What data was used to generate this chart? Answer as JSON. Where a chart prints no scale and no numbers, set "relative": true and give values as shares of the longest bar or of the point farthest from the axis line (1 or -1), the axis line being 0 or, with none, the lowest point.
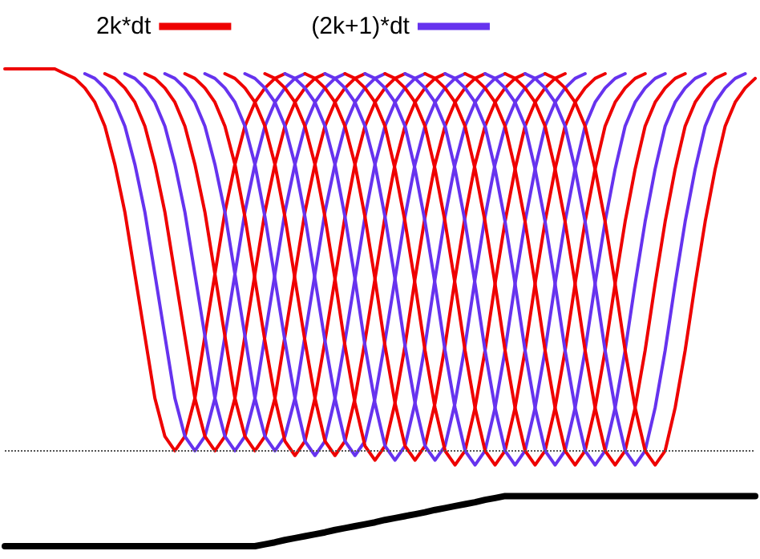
{
  "chart_data": {
    "type": "line",
    "relative": true,
    "marker": "none",
    "legend": "top left",
    "grid": false,
    "categories": [
      null,
      null,
      null,
      null,
      null,
      null,
      null,
      null,
      null,
      null,
      null,
      null,
      null,
      null,
      null,
      null,
      null,
      null,
      null,
      null,
      null,
      null,
      null,
      null,
      null,
      null,
      null,
      null,
      null,
      null,
      null,
      null,
      null,
      null,
      null,
      null,
      null,
      null,
      null,
      null,
      null,
      null,
      null,
      null,
      null,
      null,
      null,
      null,
      null,
      null,
      null,
      null,
      null,
      null,
      null,
      null,
      null,
      null,
      null,
      null,
      null,
      null,
      null,
      null,
      null,
      null,
      null,
      null,
      null,
      null,
      null,
      null,
      null,
      null,
      null,
      null
    ],
    "ref_lines": [
      {
        "axis": "y",
        "value": 0.2,
        "line_style": "dotted",
        "color": "#555555"
      }
    ],
    "series": [
      {
        "name": "2k*dt",
        "color": "#ee0000",
        "values": [
          1,
          1,
          1,
          1,
          1,
          1,
          0.99,
          0.98,
          0.96,
          0.93,
          0.88,
          0.8,
          0.7,
          0.57,
          0.44,
          0.31,
          0.23,
          0.2,
          0.23,
          0.31,
          0.44,
          0.57,
          0.7,
          0.8,
          0.88,
          0.93,
          0.96,
          0.98,
          0.99,
          null,
          null,
          null,
          null,
          null,
          null,
          null,
          null,
          null,
          null,
          null,
          null,
          null,
          null,
          null,
          null,
          null,
          null,
          null,
          null,
          null,
          null,
          null,
          null,
          null,
          null,
          null,
          null,
          null,
          null,
          null,
          null,
          null,
          null,
          null,
          null,
          null,
          null,
          null,
          null,
          null,
          null,
          null,
          null,
          null,
          null,
          null
        ]
      },
      {
        "name": "(2k+1)*dt",
        "color": "#6633ee",
        "values": [
          null,
          null,
          null,
          null,
          null,
          null,
          null,
          null,
          0.99,
          0.98,
          0.96,
          0.93,
          0.88,
          0.8,
          0.7,
          0.57,
          0.44,
          0.31,
          0.23,
          0.2,
          0.23,
          0.31,
          0.44,
          0.57,
          0.7,
          0.8,
          0.88,
          0.93,
          0.96,
          0.98,
          0.99,
          null,
          null,
          null,
          null,
          null,
          null,
          null,
          null,
          null,
          null,
          null,
          null,
          null,
          null,
          null,
          null,
          null,
          null,
          null,
          null,
          null,
          null,
          null,
          null,
          null,
          null,
          null,
          null,
          null,
          null,
          null,
          null,
          null,
          null,
          null,
          null,
          null,
          null,
          null,
          null,
          null,
          null,
          null,
          null,
          null
        ]
      },
      {
        "color": "#ee0000",
        "values": [
          null,
          null,
          null,
          null,
          null,
          null,
          null,
          null,
          null,
          null,
          0.99,
          0.98,
          0.96,
          0.93,
          0.88,
          0.8,
          0.7,
          0.57,
          0.44,
          0.31,
          0.23,
          0.2,
          0.23,
          0.31,
          0.44,
          0.57,
          0.7,
          0.8,
          0.88,
          0.93,
          0.96,
          0.98,
          0.99,
          null,
          null,
          null,
          null,
          null,
          null,
          null,
          null,
          null,
          null,
          null,
          null,
          null,
          null,
          null,
          null,
          null,
          null,
          null,
          null,
          null,
          null,
          null,
          null,
          null,
          null,
          null,
          null,
          null,
          null,
          null,
          null,
          null,
          null,
          null,
          null,
          null,
          null,
          null,
          null,
          null,
          null,
          null
        ]
      },
      {
        "color": "#6633ee",
        "values": [
          null,
          null,
          null,
          null,
          null,
          null,
          null,
          null,
          null,
          null,
          null,
          null,
          0.99,
          0.98,
          0.96,
          0.93,
          0.88,
          0.8,
          0.7,
          0.57,
          0.44,
          0.31,
          0.23,
          0.2,
          0.23,
          0.31,
          0.44,
          0.57,
          0.7,
          0.8,
          0.88,
          0.93,
          0.96,
          0.98,
          0.99,
          null,
          null,
          null,
          null,
          null,
          null,
          null,
          null,
          null,
          null,
          null,
          null,
          null,
          null,
          null,
          null,
          null,
          null,
          null,
          null,
          null,
          null,
          null,
          null,
          null,
          null,
          null,
          null,
          null,
          null,
          null,
          null,
          null,
          null,
          null,
          null,
          null,
          null,
          null,
          null,
          null
        ]
      },
      {
        "color": "#ee0000",
        "values": [
          null,
          null,
          null,
          null,
          null,
          null,
          null,
          null,
          null,
          null,
          null,
          null,
          null,
          null,
          0.99,
          0.98,
          0.96,
          0.93,
          0.88,
          0.8,
          0.7,
          0.57,
          0.44,
          0.31,
          0.23,
          0.2,
          0.23,
          0.31,
          0.44,
          0.57,
          0.7,
          0.8,
          0.88,
          0.93,
          0.96,
          0.98,
          0.99,
          null,
          null,
          null,
          null,
          null,
          null,
          null,
          null,
          null,
          null,
          null,
          null,
          null,
          null,
          null,
          null,
          null,
          null,
          null,
          null,
          null,
          null,
          null,
          null,
          null,
          null,
          null,
          null,
          null,
          null,
          null,
          null,
          null,
          null,
          null,
          null,
          null,
          null,
          null
        ]
      },
      {
        "color": "#6633ee",
        "values": [
          null,
          null,
          null,
          null,
          null,
          null,
          null,
          null,
          null,
          null,
          null,
          null,
          null,
          null,
          null,
          null,
          0.99,
          0.98,
          0.96,
          0.93,
          0.88,
          0.8,
          0.7,
          0.57,
          0.44,
          0.31,
          0.23,
          0.2,
          0.23,
          0.31,
          0.44,
          0.57,
          0.7,
          0.8,
          0.88,
          0.93,
          0.96,
          0.98,
          0.99,
          null,
          null,
          null,
          null,
          null,
          null,
          null,
          null,
          null,
          null,
          null,
          null,
          null,
          null,
          null,
          null,
          null,
          null,
          null,
          null,
          null,
          null,
          null,
          null,
          null,
          null,
          null,
          null,
          null,
          null,
          null,
          null,
          null,
          null,
          null,
          null,
          null
        ]
      },
      {
        "color": "#ee0000",
        "values": [
          null,
          null,
          null,
          null,
          null,
          null,
          null,
          null,
          null,
          null,
          null,
          null,
          null,
          null,
          null,
          null,
          null,
          null,
          0.99,
          0.98,
          0.96,
          0.93,
          0.88,
          0.8,
          0.69,
          0.56,
          0.43,
          0.31,
          0.22,
          0.19,
          0.22,
          0.31,
          0.43,
          0.56,
          0.69,
          0.8,
          0.88,
          0.93,
          0.96,
          0.98,
          0.99,
          null,
          null,
          null,
          null,
          null,
          null,
          null,
          null,
          null,
          null,
          null,
          null,
          null,
          null,
          null,
          null,
          null,
          null,
          null,
          null,
          null,
          null,
          null,
          null,
          null,
          null,
          null,
          null,
          null,
          null,
          null,
          null,
          null,
          null,
          null
        ]
      },
      {
        "color": "#6633ee",
        "values": [
          null,
          null,
          null,
          null,
          null,
          null,
          null,
          null,
          null,
          null,
          null,
          null,
          null,
          null,
          null,
          null,
          null,
          null,
          null,
          null,
          0.99,
          0.98,
          0.96,
          0.93,
          0.88,
          0.8,
          0.69,
          0.56,
          0.43,
          0.31,
          0.22,
          0.19,
          0.22,
          0.31,
          0.43,
          0.56,
          0.69,
          0.8,
          0.88,
          0.93,
          0.96,
          0.98,
          0.99,
          null,
          null,
          null,
          null,
          null,
          null,
          null,
          null,
          null,
          null,
          null,
          null,
          null,
          null,
          null,
          null,
          null,
          null,
          null,
          null,
          null,
          null,
          null,
          null,
          null,
          null,
          null,
          null,
          null,
          null,
          null,
          null,
          null
        ]
      },
      {
        "color": "#ee0000",
        "values": [
          null,
          null,
          null,
          null,
          null,
          null,
          null,
          null,
          null,
          null,
          null,
          null,
          null,
          null,
          null,
          null,
          null,
          null,
          null,
          null,
          null,
          null,
          0.99,
          0.98,
          0.96,
          0.93,
          0.88,
          0.8,
          0.69,
          0.56,
          0.43,
          0.31,
          0.22,
          0.19,
          0.22,
          0.31,
          0.43,
          0.56,
          0.69,
          0.8,
          0.88,
          0.93,
          0.96,
          0.98,
          0.99,
          null,
          null,
          null,
          null,
          null,
          null,
          null,
          null,
          null,
          null,
          null,
          null,
          null,
          null,
          null,
          null,
          null,
          null,
          null,
          null,
          null,
          null,
          null,
          null,
          null,
          null,
          null,
          null,
          null,
          null,
          null
        ]
      },
      {
        "color": "#6633ee",
        "values": [
          null,
          null,
          null,
          null,
          null,
          null,
          null,
          null,
          null,
          null,
          null,
          null,
          null,
          null,
          null,
          null,
          null,
          null,
          null,
          null,
          null,
          null,
          null,
          null,
          0.99,
          0.98,
          0.96,
          0.93,
          0.88,
          0.8,
          0.69,
          0.56,
          0.43,
          0.31,
          0.22,
          0.19,
          0.22,
          0.31,
          0.43,
          0.56,
          0.69,
          0.8,
          0.88,
          0.93,
          0.96,
          0.98,
          0.99,
          null,
          null,
          null,
          null,
          null,
          null,
          null,
          null,
          null,
          null,
          null,
          null,
          null,
          null,
          null,
          null,
          null,
          null,
          null,
          null,
          null,
          null,
          null,
          null,
          null,
          null,
          null,
          null,
          null
        ]
      },
      {
        "color": "#ee0000",
        "values": [
          null,
          null,
          null,
          null,
          null,
          null,
          null,
          null,
          null,
          null,
          null,
          null,
          null,
          null,
          null,
          null,
          null,
          null,
          null,
          null,
          null,
          null,
          null,
          null,
          null,
          null,
          0.99,
          0.98,
          0.96,
          0.93,
          0.88,
          0.8,
          0.69,
          0.56,
          0.42,
          0.3,
          0.21,
          0.18,
          0.21,
          0.3,
          0.42,
          0.56,
          0.69,
          0.8,
          0.88,
          0.93,
          0.96,
          0.98,
          0.99,
          null,
          null,
          null,
          null,
          null,
          null,
          null,
          null,
          null,
          null,
          null,
          null,
          null,
          null,
          null,
          null,
          null,
          null,
          null,
          null,
          null,
          null,
          null,
          null,
          null,
          null,
          null
        ]
      },
      {
        "color": "#6633ee",
        "values": [
          null,
          null,
          null,
          null,
          null,
          null,
          null,
          null,
          null,
          null,
          null,
          null,
          null,
          null,
          null,
          null,
          null,
          null,
          null,
          null,
          null,
          null,
          null,
          null,
          null,
          null,
          null,
          null,
          0.99,
          0.98,
          0.96,
          0.93,
          0.88,
          0.8,
          0.69,
          0.56,
          0.42,
          0.3,
          0.21,
          0.18,
          0.21,
          0.3,
          0.42,
          0.56,
          0.69,
          0.8,
          0.88,
          0.93,
          0.96,
          0.98,
          0.99,
          null,
          null,
          null,
          null,
          null,
          null,
          null,
          null,
          null,
          null,
          null,
          null,
          null,
          null,
          null,
          null,
          null,
          null,
          null,
          null,
          null,
          null,
          null,
          null,
          null
        ]
      },
      {
        "color": "#ee0000",
        "values": [
          null,
          null,
          null,
          null,
          null,
          null,
          null,
          null,
          null,
          null,
          null,
          null,
          null,
          null,
          null,
          null,
          null,
          null,
          null,
          null,
          null,
          null,
          null,
          null,
          null,
          null,
          null,
          null,
          null,
          null,
          0.99,
          0.98,
          0.96,
          0.93,
          0.88,
          0.8,
          0.69,
          0.56,
          0.42,
          0.3,
          0.21,
          0.18,
          0.21,
          0.3,
          0.42,
          0.56,
          0.69,
          0.8,
          0.88,
          0.93,
          0.96,
          0.98,
          0.99,
          null,
          null,
          null,
          null,
          null,
          null,
          null,
          null,
          null,
          null,
          null,
          null,
          null,
          null,
          null,
          null,
          null,
          null,
          null,
          null,
          null,
          null,
          null
        ]
      },
      {
        "color": "#6633ee",
        "values": [
          null,
          null,
          null,
          null,
          null,
          null,
          null,
          null,
          null,
          null,
          null,
          null,
          null,
          null,
          null,
          null,
          null,
          null,
          null,
          null,
          null,
          null,
          null,
          null,
          null,
          null,
          null,
          null,
          null,
          null,
          null,
          null,
          0.99,
          0.98,
          0.96,
          0.93,
          0.88,
          0.8,
          0.69,
          0.56,
          0.42,
          0.3,
          0.21,
          0.18,
          0.21,
          0.3,
          0.42,
          0.56,
          0.69,
          0.8,
          0.88,
          0.93,
          0.96,
          0.98,
          0.99,
          null,
          null,
          null,
          null,
          null,
          null,
          null,
          null,
          null,
          null,
          null,
          null,
          null,
          null,
          null,
          null,
          null,
          null,
          null,
          null,
          null
        ]
      },
      {
        "color": "#ee0000",
        "values": [
          null,
          null,
          null,
          null,
          null,
          null,
          null,
          null,
          null,
          null,
          null,
          null,
          null,
          null,
          null,
          null,
          null,
          null,
          null,
          null,
          null,
          null,
          null,
          null,
          null,
          null,
          null,
          null,
          null,
          null,
          null,
          null,
          null,
          null,
          0.99,
          0.98,
          0.96,
          0.93,
          0.88,
          0.79,
          0.68,
          0.55,
          0.41,
          0.29,
          0.2,
          0.17,
          0.2,
          0.29,
          0.41,
          0.55,
          0.68,
          0.79,
          0.88,
          0.93,
          0.96,
          0.98,
          0.99,
          null,
          null,
          null,
          null,
          null,
          null,
          null,
          null,
          null,
          null,
          null,
          null,
          null,
          null,
          null,
          null,
          null,
          null,
          null
        ]
      },
      {
        "color": "#6633ee",
        "values": [
          null,
          null,
          null,
          null,
          null,
          null,
          null,
          null,
          null,
          null,
          null,
          null,
          null,
          null,
          null,
          null,
          null,
          null,
          null,
          null,
          null,
          null,
          null,
          null,
          null,
          null,
          null,
          null,
          null,
          null,
          null,
          null,
          null,
          null,
          null,
          null,
          0.99,
          0.98,
          0.96,
          0.93,
          0.88,
          0.79,
          0.68,
          0.55,
          0.41,
          0.29,
          0.2,
          0.17,
          0.2,
          0.29,
          0.41,
          0.55,
          0.68,
          0.79,
          0.88,
          0.93,
          0.96,
          0.98,
          0.99,
          null,
          null,
          null,
          null,
          null,
          null,
          null,
          null,
          null,
          null,
          null,
          null,
          null,
          null,
          null,
          null,
          null
        ]
      },
      {
        "color": "#ee0000",
        "values": [
          null,
          null,
          null,
          null,
          null,
          null,
          null,
          null,
          null,
          null,
          null,
          null,
          null,
          null,
          null,
          null,
          null,
          null,
          null,
          null,
          null,
          null,
          null,
          null,
          null,
          null,
          null,
          null,
          null,
          null,
          null,
          null,
          null,
          null,
          null,
          null,
          null,
          null,
          0.99,
          0.98,
          0.96,
          0.93,
          0.88,
          0.79,
          0.68,
          0.55,
          0.41,
          0.29,
          0.2,
          0.17,
          0.2,
          0.29,
          0.41,
          0.55,
          0.68,
          0.79,
          0.88,
          0.93,
          0.96,
          0.98,
          0.99,
          null,
          null,
          null,
          null,
          null,
          null,
          null,
          null,
          null,
          null,
          null,
          null,
          null,
          null,
          null
        ]
      },
      {
        "color": "#6633ee",
        "values": [
          null,
          null,
          null,
          null,
          null,
          null,
          null,
          null,
          null,
          null,
          null,
          null,
          null,
          null,
          null,
          null,
          null,
          null,
          null,
          null,
          null,
          null,
          null,
          null,
          null,
          null,
          null,
          null,
          null,
          null,
          null,
          null,
          null,
          null,
          null,
          null,
          null,
          null,
          null,
          null,
          0.99,
          0.98,
          0.96,
          0.93,
          0.88,
          0.79,
          0.68,
          0.55,
          0.41,
          0.29,
          0.2,
          0.17,
          0.2,
          0.29,
          0.41,
          0.55,
          0.68,
          0.79,
          0.88,
          0.93,
          0.96,
          0.98,
          0.99,
          null,
          null,
          null,
          null,
          null,
          null,
          null,
          null,
          null,
          null,
          null,
          null,
          null
        ]
      },
      {
        "color": "#ee0000",
        "values": [
          null,
          null,
          null,
          null,
          null,
          null,
          null,
          null,
          null,
          null,
          null,
          null,
          null,
          null,
          null,
          null,
          null,
          null,
          null,
          null,
          null,
          null,
          null,
          null,
          null,
          null,
          null,
          null,
          null,
          null,
          null,
          null,
          null,
          null,
          null,
          null,
          null,
          null,
          null,
          null,
          null,
          null,
          0.99,
          0.98,
          0.96,
          0.93,
          0.88,
          0.79,
          0.68,
          0.55,
          0.41,
          0.29,
          0.2,
          0.17,
          0.2,
          0.29,
          0.41,
          0.55,
          0.68,
          0.79,
          0.88,
          0.93,
          0.96,
          0.98,
          0.99,
          null,
          null,
          null,
          null,
          null,
          null,
          null,
          null,
          null,
          null,
          null
        ]
      },
      {
        "color": "#6633ee",
        "values": [
          null,
          null,
          null,
          null,
          null,
          null,
          null,
          null,
          null,
          null,
          null,
          null,
          null,
          null,
          null,
          null,
          null,
          null,
          null,
          null,
          null,
          null,
          null,
          null,
          null,
          null,
          null,
          null,
          null,
          null,
          null,
          null,
          null,
          null,
          null,
          null,
          null,
          null,
          null,
          null,
          null,
          null,
          null,
          null,
          0.99,
          0.98,
          0.96,
          0.93,
          0.88,
          0.79,
          0.68,
          0.55,
          0.41,
          0.29,
          0.2,
          0.17,
          0.2,
          0.29,
          0.41,
          0.55,
          0.68,
          0.79,
          0.88,
          0.93,
          0.96,
          0.98,
          0.99,
          null,
          null,
          null,
          null,
          null,
          null,
          null,
          null,
          null
        ]
      },
      {
        "color": "#ee0000",
        "values": [
          null,
          null,
          null,
          null,
          null,
          null,
          null,
          null,
          null,
          null,
          null,
          null,
          null,
          null,
          null,
          null,
          null,
          null,
          null,
          null,
          null,
          null,
          null,
          null,
          null,
          null,
          null,
          null,
          null,
          null,
          null,
          null,
          null,
          null,
          null,
          null,
          null,
          null,
          null,
          null,
          null,
          null,
          null,
          null,
          null,
          null,
          0.99,
          0.98,
          0.96,
          0.93,
          0.88,
          0.79,
          0.68,
          0.55,
          0.41,
          0.29,
          0.2,
          0.17,
          0.2,
          0.29,
          0.41,
          0.55,
          0.68,
          0.79,
          0.88,
          0.93,
          0.96,
          0.98,
          0.99,
          null,
          null,
          null,
          null,
          null,
          null,
          null
        ]
      },
      {
        "color": "#6633ee",
        "values": [
          null,
          null,
          null,
          null,
          null,
          null,
          null,
          null,
          null,
          null,
          null,
          null,
          null,
          null,
          null,
          null,
          null,
          null,
          null,
          null,
          null,
          null,
          null,
          null,
          null,
          null,
          null,
          null,
          null,
          null,
          null,
          null,
          null,
          null,
          null,
          null,
          null,
          null,
          null,
          null,
          null,
          null,
          null,
          null,
          null,
          null,
          null,
          null,
          0.99,
          0.98,
          0.96,
          0.93,
          0.88,
          0.79,
          0.68,
          0.55,
          0.41,
          0.29,
          0.2,
          0.17,
          0.2,
          0.29,
          0.41,
          0.55,
          0.68,
          0.79,
          0.88,
          0.93,
          0.96,
          0.98,
          0.99,
          null,
          null,
          null,
          null,
          null
        ]
      },
      {
        "color": "#ee0000",
        "values": [
          null,
          null,
          null,
          null,
          null,
          null,
          null,
          null,
          null,
          null,
          null,
          null,
          null,
          null,
          null,
          null,
          null,
          null,
          null,
          null,
          null,
          null,
          null,
          null,
          null,
          null,
          null,
          null,
          null,
          null,
          null,
          null,
          null,
          null,
          null,
          null,
          null,
          null,
          null,
          null,
          null,
          null,
          null,
          null,
          null,
          null,
          null,
          null,
          null,
          null,
          0.99,
          0.98,
          0.96,
          0.93,
          0.88,
          0.79,
          0.68,
          0.55,
          0.41,
          0.29,
          0.2,
          0.17,
          0.2,
          0.29,
          0.41,
          0.55,
          0.68,
          0.79,
          0.88,
          0.93,
          0.96,
          0.98,
          0.99,
          null,
          null,
          null
        ]
      },
      {
        "color": "#6633ee",
        "values": [
          null,
          null,
          null,
          null,
          null,
          null,
          null,
          null,
          null,
          null,
          null,
          null,
          null,
          null,
          null,
          null,
          null,
          null,
          null,
          null,
          null,
          null,
          null,
          null,
          null,
          null,
          null,
          null,
          null,
          null,
          null,
          null,
          null,
          null,
          null,
          null,
          null,
          null,
          null,
          null,
          null,
          null,
          null,
          null,
          null,
          null,
          null,
          null,
          null,
          null,
          null,
          null,
          0.99,
          0.98,
          0.96,
          0.93,
          0.88,
          0.79,
          0.68,
          0.55,
          0.41,
          0.29,
          0.2,
          0.17,
          0.2,
          0.29,
          0.41,
          0.55,
          0.68,
          0.79,
          0.88,
          0.93,
          0.96,
          0.98,
          0.99,
          null
        ]
      },
      {
        "color": "#ee0000",
        "values": [
          null,
          null,
          null,
          null,
          null,
          null,
          null,
          null,
          null,
          null,
          null,
          null,
          null,
          null,
          null,
          null,
          null,
          null,
          null,
          null,
          null,
          null,
          null,
          null,
          null,
          null,
          null,
          null,
          null,
          null,
          null,
          null,
          null,
          null,
          null,
          null,
          null,
          null,
          null,
          null,
          null,
          null,
          null,
          null,
          null,
          null,
          null,
          null,
          null,
          null,
          null,
          null,
          null,
          null,
          0.99,
          0.98,
          0.96,
          0.93,
          0.88,
          0.79,
          0.68,
          0.55,
          0.41,
          0.29,
          0.2,
          0.17,
          0.2,
          0.29,
          0.41,
          0.55,
          0.68,
          0.79,
          0.88,
          0.93,
          0.96,
          0.98
        ]
      },
      {
        "color": "#000000",
        "values": [
          0,
          0,
          0,
          0,
          0,
          0,
          0,
          0,
          0,
          0,
          0,
          0,
          0,
          0,
          0,
          0,
          0,
          0,
          0,
          0,
          0,
          0,
          0,
          0,
          0,
          0,
          0.004,
          0.008,
          0.013,
          0.017,
          0.021,
          0.025,
          0.029,
          0.034,
          0.038,
          0.042,
          0.046,
          0.05,
          0.055,
          0.059,
          0.063,
          0.067,
          0.071,
          0.076,
          0.08,
          0.084,
          0.088,
          0.092,
          0.097,
          0.101,
          0.105,
          0.105,
          0.105,
          0.105,
          0.105,
          0.105,
          0.105,
          0.105,
          0.105,
          0.105,
          0.105,
          0.105,
          0.105,
          0.105,
          0.105,
          0.105,
          0.105,
          0.105,
          0.105,
          0.105,
          0.105,
          0.105,
          0.105,
          0.105,
          0.105,
          0.105
        ]
      }
    ]
  }
}
